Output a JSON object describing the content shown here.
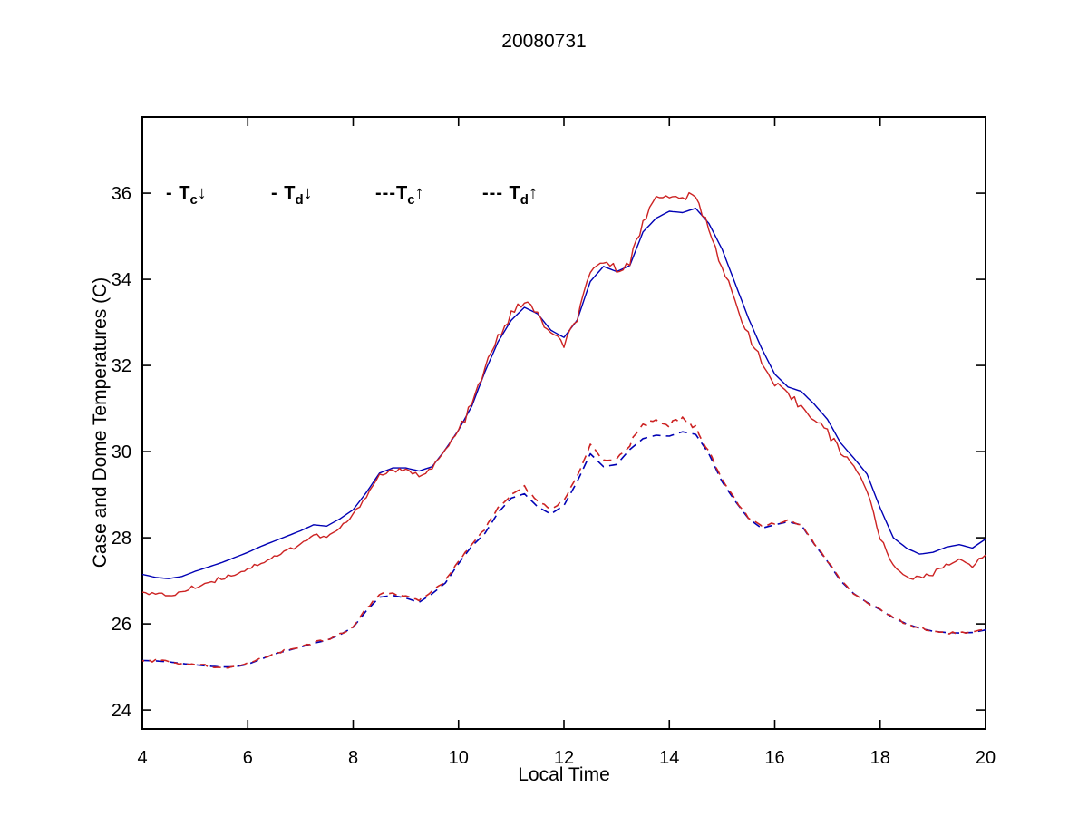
{
  "figure": {
    "title": "20080731"
  },
  "chart_data": {
    "type": "line",
    "title": "20080731",
    "xlabel": "Local Time",
    "ylabel": "Case and Dome Temperatures (C)",
    "xlim": [
      4,
      20
    ],
    "ylim": [
      23.56,
      37.77
    ],
    "xticks": [
      4,
      6,
      8,
      10,
      12,
      14,
      16,
      18,
      20
    ],
    "yticks": [
      24,
      26,
      28,
      30,
      32,
      34,
      36
    ],
    "grid": false,
    "legend_position": "inside-top-left",
    "x_start": 4,
    "x_step": 0.25,
    "colors": {
      "blue": "#0000B4",
      "red": "#CC2222"
    },
    "series": [
      {
        "name": "Tc_down",
        "style": "solid",
        "color": "#0000B4",
        "jitter": 0,
        "legend": {
          "marker": "- ",
          "base": "T",
          "sub": "c",
          "arrow": "↓"
        },
        "values": [
          27.15,
          27.08,
          27.05,
          27.1,
          27.22,
          27.32,
          27.42,
          27.54,
          27.66,
          27.8,
          27.92,
          28.04,
          28.16,
          28.3,
          28.27,
          28.44,
          28.65,
          29.05,
          29.5,
          29.62,
          29.62,
          29.55,
          29.65,
          30.05,
          30.5,
          31.05,
          31.85,
          32.55,
          33.05,
          33.35,
          33.2,
          32.82,
          32.65,
          33.05,
          33.95,
          34.3,
          34.18,
          34.32,
          35.1,
          35.42,
          35.58,
          35.55,
          35.65,
          35.3,
          34.7,
          33.9,
          33.1,
          32.4,
          31.8,
          31.5,
          31.4,
          31.1,
          30.75,
          30.2,
          29.85,
          29.48,
          28.69,
          28.0,
          27.76,
          27.62,
          27.66,
          27.78,
          27.84,
          27.76,
          27.97
        ]
      },
      {
        "name": "Td_down",
        "style": "solid",
        "color": "#CC2222",
        "jitter": 0.05,
        "legend": {
          "marker": "- ",
          "base": "T",
          "sub": "d",
          "arrow": "↓"
        },
        "values": [
          26.78,
          26.68,
          26.66,
          26.74,
          26.86,
          26.96,
          27.06,
          27.16,
          27.28,
          27.42,
          27.56,
          27.7,
          27.86,
          28.06,
          28.0,
          28.22,
          28.52,
          28.98,
          29.45,
          29.57,
          29.55,
          29.45,
          29.62,
          30.02,
          30.48,
          31.08,
          31.92,
          32.65,
          33.18,
          33.5,
          33.18,
          32.72,
          32.48,
          33.1,
          34.1,
          34.45,
          34.22,
          34.42,
          35.3,
          36.0,
          35.85,
          35.92,
          35.9,
          35.2,
          34.3,
          33.45,
          32.75,
          32.05,
          31.55,
          31.3,
          31.05,
          30.8,
          30.45,
          29.98,
          29.7,
          29.1,
          28.0,
          27.35,
          27.1,
          27.06,
          27.16,
          27.4,
          27.46,
          27.36,
          27.6
        ]
      },
      {
        "name": "Tc_up",
        "style": "dashed",
        "color": "#0000B4",
        "jitter": 0,
        "legend": {
          "marker": "---",
          "base": "T",
          "sub": "c",
          "arrow": "↑"
        },
        "values": [
          25.15,
          25.14,
          25.12,
          25.08,
          25.05,
          25.02,
          25.0,
          25.0,
          25.06,
          25.18,
          25.3,
          25.38,
          25.46,
          25.55,
          25.62,
          25.75,
          25.92,
          26.3,
          26.62,
          26.66,
          26.6,
          26.5,
          26.7,
          26.95,
          27.4,
          27.8,
          28.1,
          28.58,
          28.92,
          29.02,
          28.72,
          28.55,
          28.75,
          29.3,
          29.95,
          29.65,
          29.7,
          30.05,
          30.3,
          30.38,
          30.36,
          30.46,
          30.4,
          29.95,
          29.3,
          28.85,
          28.45,
          28.22,
          28.3,
          28.37,
          28.3,
          27.85,
          27.45,
          27.0,
          26.7,
          26.5,
          26.33,
          26.14,
          26.0,
          25.9,
          25.83,
          25.8,
          25.79,
          25.8,
          25.86
        ]
      },
      {
        "name": "Td_up",
        "style": "dashed",
        "color": "#CC2222",
        "jitter": 0.03,
        "legend": {
          "marker": "--- ",
          "base": "T",
          "sub": "d",
          "arrow": "↑"
        },
        "values": [
          25.15,
          25.14,
          25.12,
          25.08,
          25.05,
          25.02,
          25.0,
          25.0,
          25.07,
          25.19,
          25.31,
          25.39,
          25.47,
          25.56,
          25.63,
          25.76,
          25.94,
          26.35,
          26.68,
          26.72,
          26.65,
          26.55,
          26.74,
          27.0,
          27.46,
          27.86,
          28.2,
          28.68,
          29.0,
          29.18,
          28.85,
          28.65,
          28.88,
          29.42,
          30.12,
          29.8,
          29.82,
          30.18,
          30.62,
          30.7,
          30.62,
          30.78,
          30.55,
          30.02,
          29.35,
          28.88,
          28.48,
          28.25,
          28.33,
          28.4,
          28.32,
          27.87,
          27.46,
          27.01,
          26.7,
          26.5,
          26.33,
          26.14,
          26.0,
          25.9,
          25.83,
          25.8,
          25.79,
          25.8,
          25.86
        ]
      }
    ]
  }
}
